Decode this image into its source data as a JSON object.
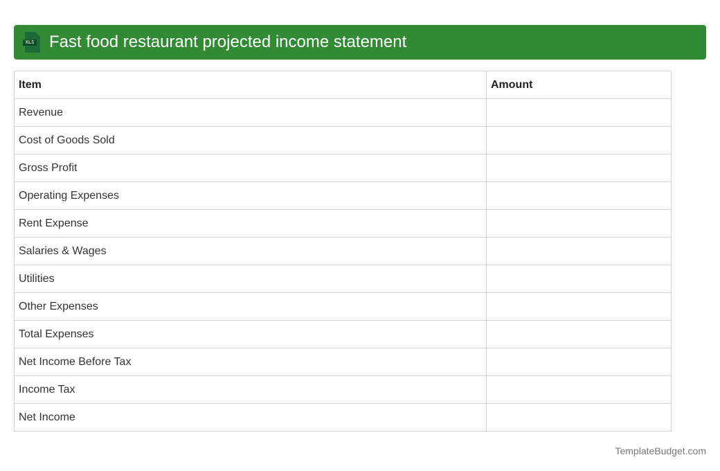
{
  "header": {
    "title": "Fast food restaurant projected income statement",
    "icon": "xls-file-icon",
    "icon_label": "XLS",
    "color": "#328a35"
  },
  "table": {
    "columns": [
      "Item",
      "Amount"
    ],
    "rows": [
      {
        "item": "Revenue",
        "amount": ""
      },
      {
        "item": "Cost of Goods Sold",
        "amount": ""
      },
      {
        "item": "Gross Profit",
        "amount": ""
      },
      {
        "item": "Operating Expenses",
        "amount": ""
      },
      {
        "item": "Rent Expense",
        "amount": ""
      },
      {
        "item": "Salaries & Wages",
        "amount": ""
      },
      {
        "item": "Utilities",
        "amount": ""
      },
      {
        "item": "Other Expenses",
        "amount": ""
      },
      {
        "item": "Total Expenses",
        "amount": ""
      },
      {
        "item": "Net Income Before Tax",
        "amount": ""
      },
      {
        "item": "Income Tax",
        "amount": ""
      },
      {
        "item": "Net Income",
        "amount": ""
      }
    ]
  },
  "footer": {
    "brand": "TemplateBudget.com"
  }
}
